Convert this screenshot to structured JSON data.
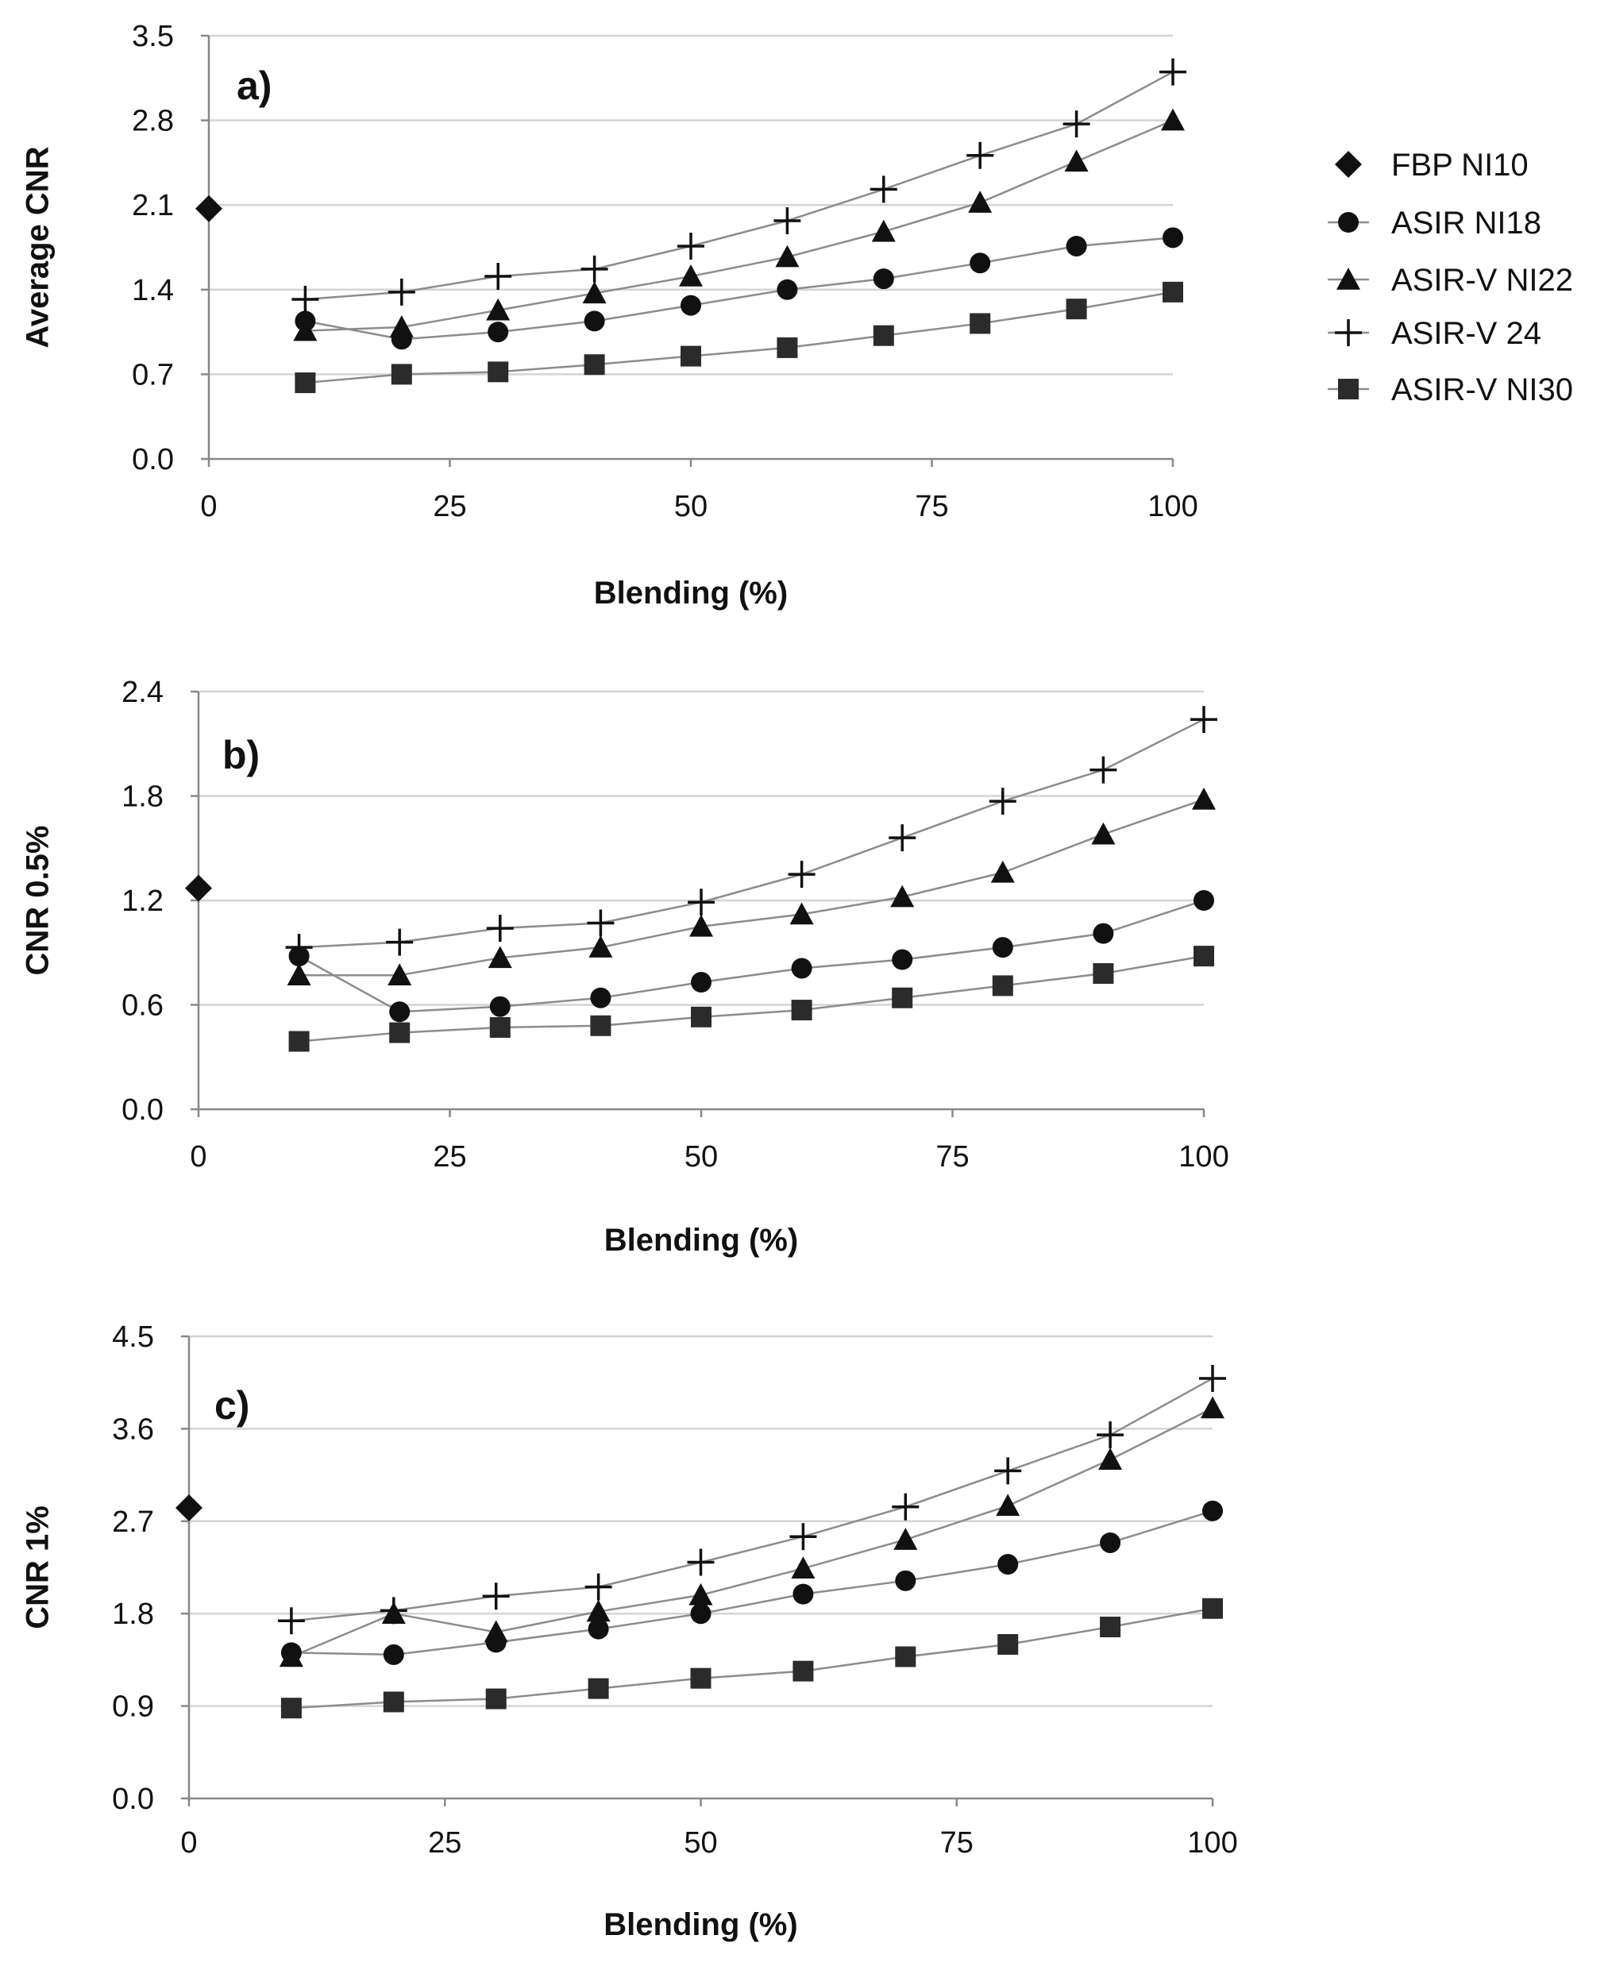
{
  "chart_data": [
    {
      "type": "line",
      "panel_label": "a)",
      "title": "",
      "xlabel": "Blending  (%)",
      "ylabel": "Average CNR",
      "xlim": [
        0,
        100
      ],
      "ylim": [
        0,
        3.5
      ],
      "x_ticks": [
        "0",
        "25",
        "50",
        "75",
        "100"
      ],
      "y_ticks": [
        "0.0",
        "0.7",
        "1.4",
        "2.1",
        "2.8",
        "3.5"
      ],
      "grid": "horizontal",
      "fbp_point": {
        "x": 0,
        "y": 2.07
      },
      "x": [
        10,
        20,
        30,
        40,
        50,
        60,
        70,
        80,
        90,
        100
      ],
      "series": [
        {
          "name": "ASIR NI18",
          "marker": "circle",
          "values": [
            1.14,
            0.99,
            1.05,
            1.14,
            1.27,
            1.4,
            1.49,
            1.62,
            1.76,
            1.83
          ]
        },
        {
          "name": "ASIR-V NI22",
          "marker": "triangle",
          "values": [
            1.06,
            1.09,
            1.23,
            1.37,
            1.51,
            1.67,
            1.88,
            2.12,
            2.46,
            2.8
          ]
        },
        {
          "name": "ASIR-V 24",
          "marker": "plus",
          "values": [
            1.32,
            1.38,
            1.51,
            1.57,
            1.76,
            1.97,
            2.23,
            2.51,
            2.77,
            3.2
          ]
        },
        {
          "name": "ASIR-V NI30",
          "marker": "square",
          "values": [
            0.63,
            0.7,
            0.72,
            0.78,
            0.85,
            0.92,
            1.02,
            1.12,
            1.24,
            1.38
          ]
        }
      ]
    },
    {
      "type": "line",
      "panel_label": "b)",
      "title": "",
      "xlabel": "Blending (%)",
      "ylabel": "CNR 0.5%",
      "xlim": [
        0,
        100
      ],
      "ylim": [
        0,
        2.4
      ],
      "x_ticks": [
        "0",
        "25",
        "50",
        "75",
        "100"
      ],
      "y_ticks": [
        "0.0",
        "0.6",
        "1.2",
        "1.8",
        "2.4"
      ],
      "grid": "horizontal",
      "fbp_point": {
        "x": 0,
        "y": 1.27
      },
      "x": [
        10,
        20,
        30,
        40,
        50,
        60,
        70,
        80,
        90,
        100
      ],
      "series": [
        {
          "name": "ASIR NI18",
          "marker": "circle",
          "values": [
            0.88,
            0.56,
            0.59,
            0.64,
            0.73,
            0.81,
            0.86,
            0.93,
            1.01,
            1.2
          ]
        },
        {
          "name": "ASIR-V NI22",
          "marker": "triangle",
          "values": [
            0.77,
            0.77,
            0.87,
            0.93,
            1.05,
            1.12,
            1.22,
            1.36,
            1.58,
            1.78
          ]
        },
        {
          "name": "ASIR-V 24",
          "marker": "plus",
          "values": [
            0.93,
            0.96,
            1.04,
            1.07,
            1.19,
            1.35,
            1.56,
            1.77,
            1.95,
            2.24
          ]
        },
        {
          "name": "ASIR-V NI30",
          "marker": "square",
          "values": [
            0.39,
            0.44,
            0.47,
            0.48,
            0.53,
            0.57,
            0.64,
            0.71,
            0.78,
            0.88
          ]
        }
      ]
    },
    {
      "type": "line",
      "panel_label": "c)",
      "title": "",
      "xlabel": "Blending (%)",
      "ylabel": "CNR 1%",
      "xlim": [
        0,
        100
      ],
      "ylim": [
        0,
        4.5
      ],
      "x_ticks": [
        "0",
        "25",
        "50",
        "75",
        "100"
      ],
      "y_ticks": [
        "0.0",
        "0.9",
        "1.8",
        "2.7",
        "3.6",
        "4.5"
      ],
      "grid": "horizontal",
      "fbp_point": {
        "x": 0,
        "y": 2.83
      },
      "x": [
        10,
        20,
        30,
        40,
        50,
        60,
        70,
        80,
        90,
        100
      ],
      "series": [
        {
          "name": "ASIR NI18",
          "marker": "circle",
          "values": [
            1.42,
            1.4,
            1.52,
            1.65,
            1.8,
            1.99,
            2.12,
            2.28,
            2.49,
            2.8
          ]
        },
        {
          "name": "ASIR-V NI22",
          "marker": "triangle",
          "values": [
            1.38,
            1.8,
            1.62,
            1.82,
            1.98,
            2.24,
            2.52,
            2.85,
            3.3,
            3.8
          ]
        },
        {
          "name": "ASIR-V 24",
          "marker": "plus",
          "values": [
            1.73,
            1.83,
            1.97,
            2.06,
            2.3,
            2.55,
            2.84,
            3.19,
            3.54,
            4.09
          ]
        },
        {
          "name": "ASIR-V NI30",
          "marker": "square",
          "values": [
            0.88,
            0.94,
            0.97,
            1.07,
            1.17,
            1.24,
            1.38,
            1.5,
            1.67,
            1.85
          ]
        }
      ]
    }
  ],
  "legend": {
    "placement": "right of top panel",
    "items": [
      {
        "label": "FBP NI10",
        "marker": "diamond"
      },
      {
        "label": "ASIR NI18",
        "marker": "circle"
      },
      {
        "label": "ASIR-V NI22",
        "marker": "triangle"
      },
      {
        "label": "ASIR-V 24",
        "marker": "plus"
      },
      {
        "label": "ASIR-V NI30",
        "marker": "square"
      }
    ]
  },
  "colors": {
    "marker": "#111111",
    "line": "#8c8c8c",
    "grid": "#d4d4d4",
    "axis": "#888888",
    "square_fill": "#2b2b2b"
  }
}
